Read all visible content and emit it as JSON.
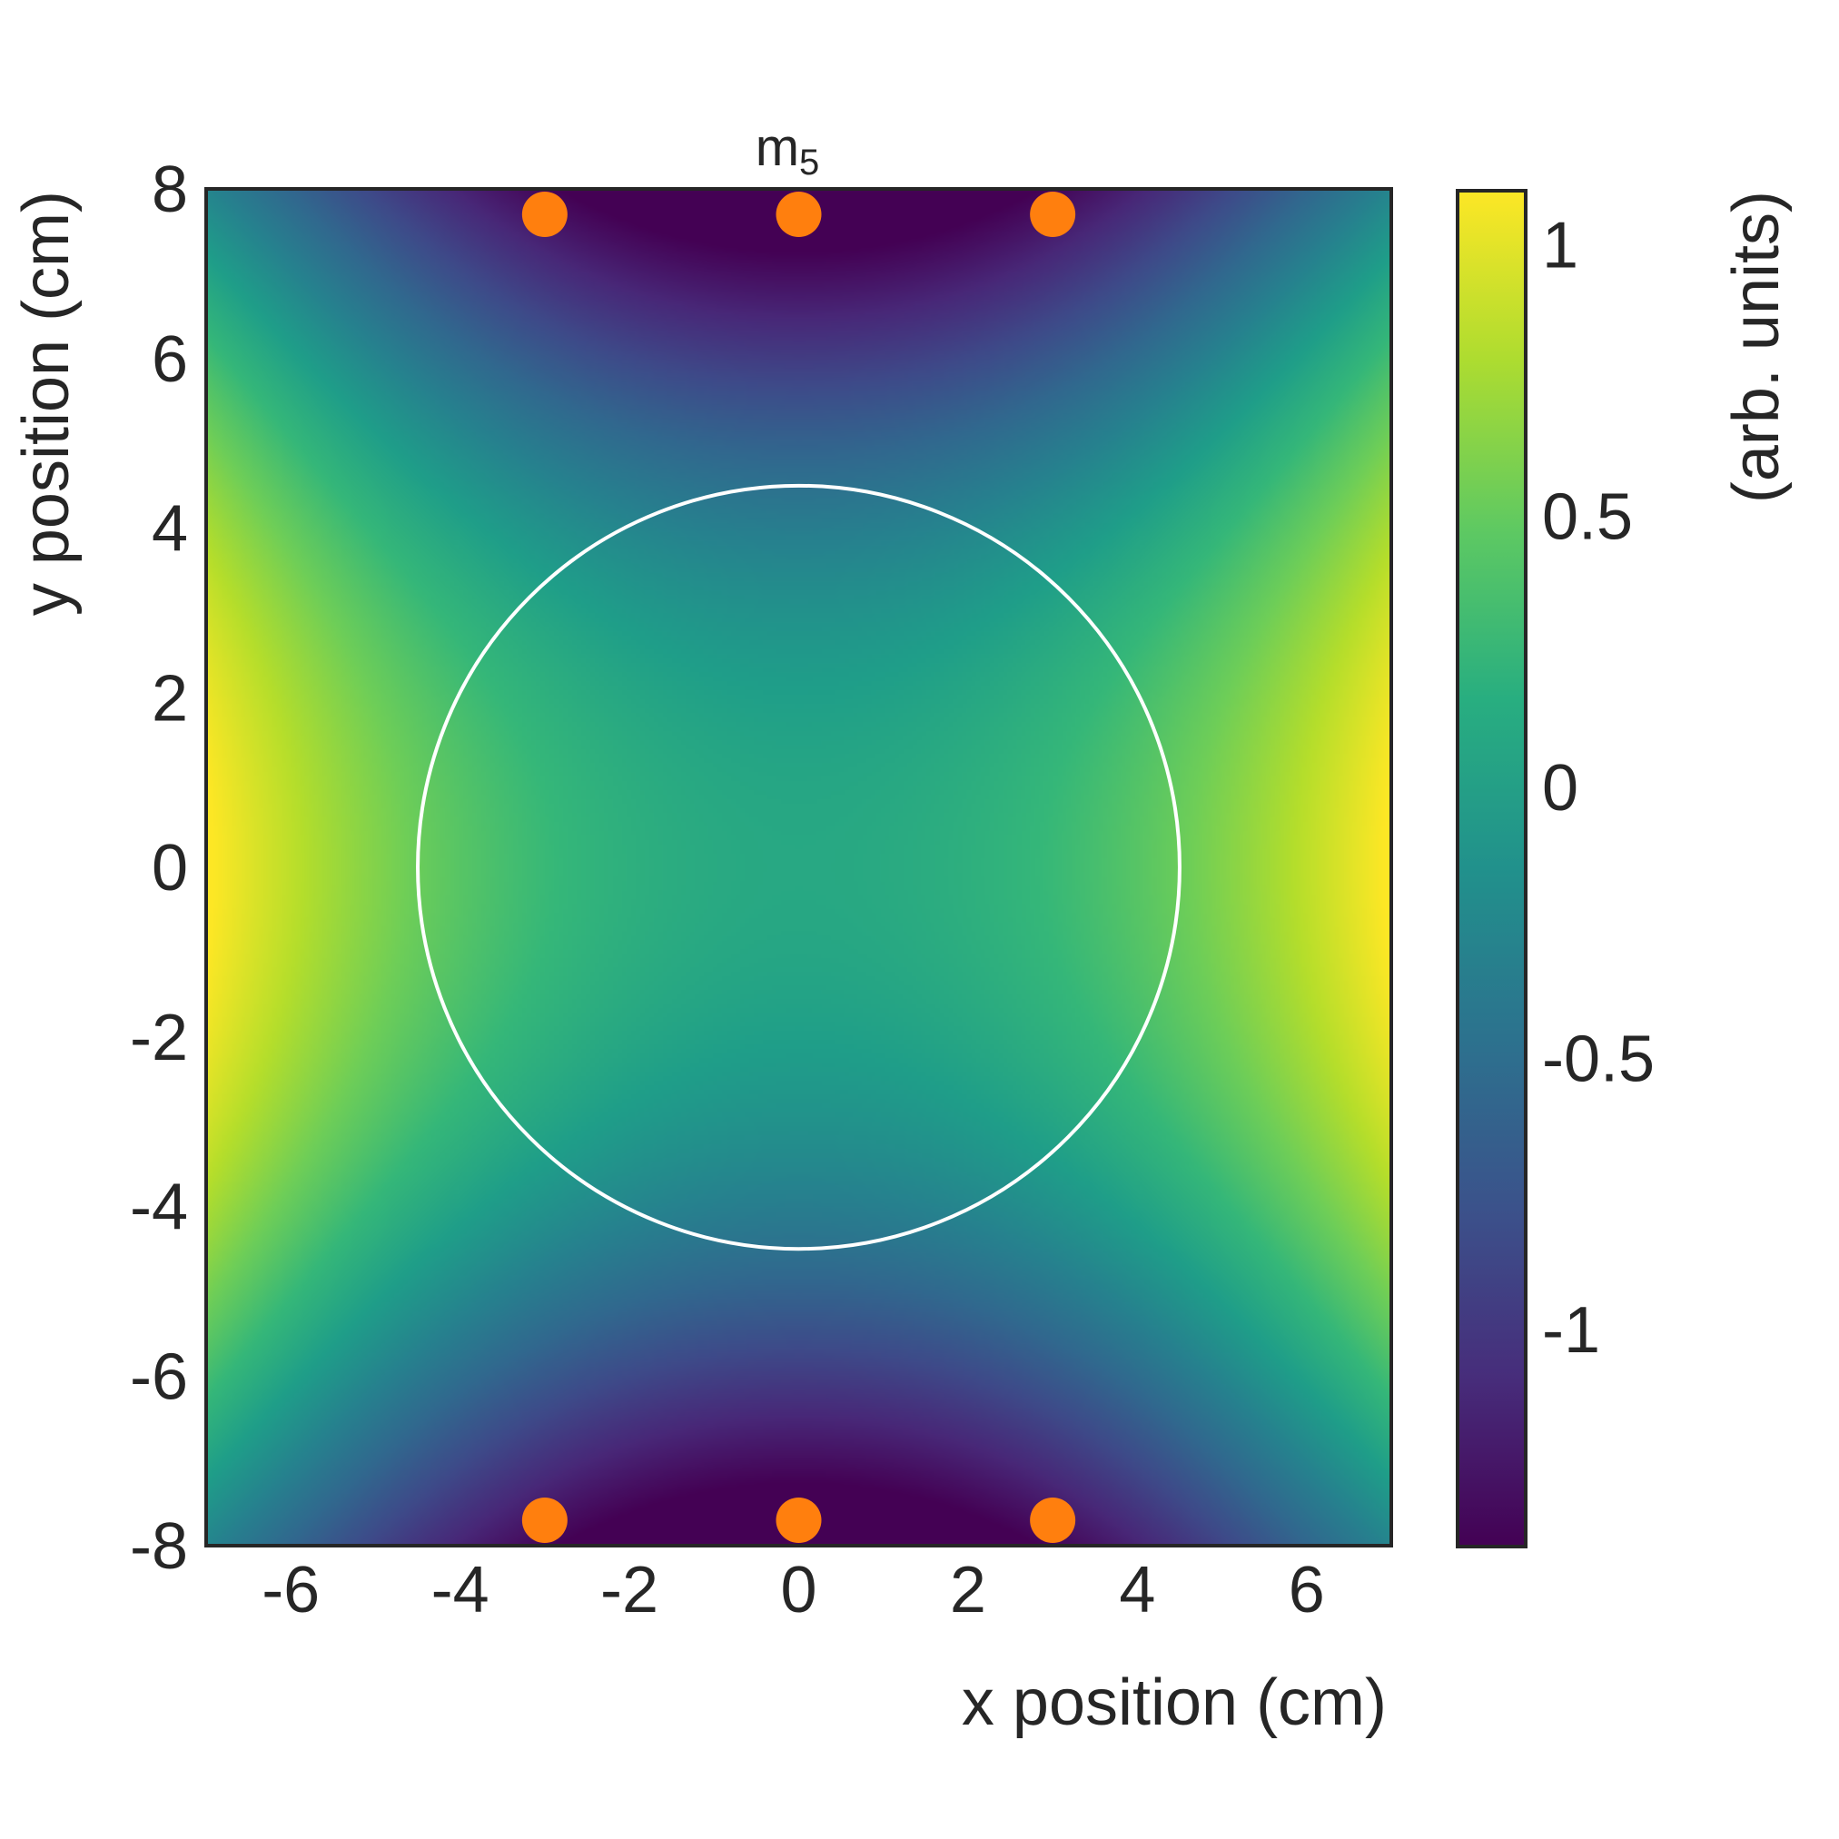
{
  "chart_data": {
    "type": "heatmap",
    "title": "m",
    "title_subscript": "5",
    "xlabel": "x position (cm)",
    "ylabel": "y position (cm)",
    "colorbar_label": "(arb. units)",
    "xlim": [
      -7,
      7
    ],
    "ylim": [
      -8,
      8
    ],
    "x_ticks": [
      -6,
      -4,
      -2,
      0,
      2,
      4,
      6
    ],
    "y_ticks": [
      -8,
      -6,
      -4,
      -2,
      0,
      2,
      4,
      6,
      8
    ],
    "colorbar_range": [
      -1.4,
      1.1
    ],
    "colorbar_ticks": [
      -1,
      -0.5,
      0,
      0.5,
      1
    ],
    "colormap": "viridis",
    "grid": false,
    "field_samples": [
      {
        "x": 0,
        "y": 0,
        "value": 0.1
      },
      {
        "x": 0,
        "y": 7.7,
        "value": -1.4
      },
      {
        "x": 0,
        "y": -7.7,
        "value": -1.4
      },
      {
        "x": -7,
        "y": 0,
        "value": 1.1
      },
      {
        "x": 7,
        "y": 0,
        "value": 1.1
      },
      {
        "x": -7,
        "y": 8,
        "value": -0.3
      },
      {
        "x": 7,
        "y": 8,
        "value": -0.3
      },
      {
        "x": -7,
        "y": -8,
        "value": -0.3
      },
      {
        "x": 7,
        "y": -8,
        "value": -0.3
      }
    ],
    "circle": {
      "center": [
        0,
        0
      ],
      "radius": 4.5,
      "color": "#ffffff"
    },
    "markers": {
      "color": "#ff7f0e",
      "points": [
        {
          "x": -3,
          "y": 7.7
        },
        {
          "x": 0,
          "y": 7.7
        },
        {
          "x": 3,
          "y": 7.7
        },
        {
          "x": -3,
          "y": -7.7
        },
        {
          "x": 0,
          "y": -7.7
        },
        {
          "x": 3,
          "y": -7.7
        }
      ]
    }
  }
}
